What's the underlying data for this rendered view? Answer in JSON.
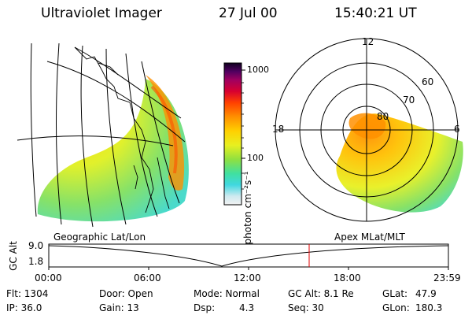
{
  "header": {
    "title": "Ultraviolet Imager",
    "date": "27 Jul 00",
    "time": "15:40:21 UT"
  },
  "colorbar": {
    "unit_label": "photon cm⁻²s⁻¹",
    "ticks": [
      "1000",
      "100"
    ]
  },
  "polar_plot": {
    "mlt_labels": {
      "top": "12",
      "left": "18",
      "right": "6"
    },
    "lat_labels": [
      "60",
      "70",
      "80"
    ]
  },
  "panel_labels": {
    "left": "Geographic Lat/Lon",
    "right": "Apex MLat/MLT"
  },
  "alt_plot": {
    "ylabel": "GC Alt",
    "y_top": "9.0",
    "y_bottom": "1.8",
    "x_ticks": [
      "00:00",
      "06:00",
      "12:00",
      "18:00",
      "23:59"
    ],
    "marker_time": "15:40"
  },
  "info": {
    "flt": "Flt: 1304",
    "ip": "IP: 36.0",
    "door": "Door: Open",
    "gain": "Gain: 13",
    "mode": "Mode: Normal",
    "dsp_label": "Dsp:",
    "dsp_value": "4.3",
    "gcalt": "GC Alt: 8.1 Re",
    "seq": "Seq: 30",
    "glat_label": "GLat:",
    "glat_value": "47.9",
    "glon_label": "GLon:",
    "glon_value": "180.3"
  },
  "colors": {
    "marker": "#e00000",
    "background": "#ffffff"
  }
}
